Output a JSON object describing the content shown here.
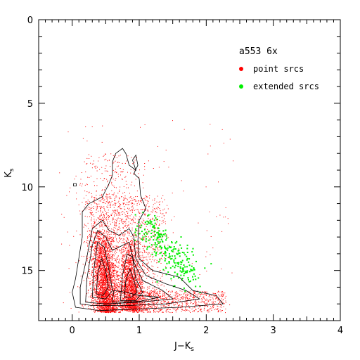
{
  "chart_data": {
    "type": "scatter",
    "title": "a553 6x",
    "xlabel": "J−K",
    "xlabel_subscript": "s",
    "ylabel": "K",
    "ylabel_subscript": "s",
    "xlim": [
      -0.5,
      4
    ],
    "ylim": [
      18,
      0
    ],
    "y_inverted": true,
    "grid": false,
    "legend_position": "top-right",
    "x_ticks": [
      0,
      1,
      2,
      3,
      4
    ],
    "y_ticks": [
      0,
      5,
      10,
      15
    ],
    "x_tick_labels": [
      "0",
      "1",
      "2",
      "3",
      "4"
    ],
    "y_tick_labels": [
      "0",
      "5",
      "10",
      "15"
    ],
    "series": [
      {
        "name": "point srcs",
        "color": "#ff0000",
        "marker": "dot",
        "values_cluster_description": "dense red cloud of point sources; two main tongues near J−K=0.35–0.6 and 0.8–0.95, spanning Ks≈11–17.5",
        "sample": [
          {
            "x": 0.4,
            "y": 13.0
          },
          {
            "x": 0.45,
            "y": 14.0
          },
          {
            "x": 0.5,
            "y": 15.0
          },
          {
            "x": 0.55,
            "y": 16.0
          },
          {
            "x": 0.6,
            "y": 16.5
          },
          {
            "x": 0.85,
            "y": 14.0
          },
          {
            "x": 0.9,
            "y": 15.5
          },
          {
            "x": 0.95,
            "y": 16.5
          },
          {
            "x": 1.2,
            "y": 16.8
          },
          {
            "x": 1.5,
            "y": 16.9
          },
          {
            "x": 1.8,
            "y": 16.9
          },
          {
            "x": 0.3,
            "y": 17.0
          },
          {
            "x": 0.8,
            "y": 10.0
          },
          {
            "x": 0.7,
            "y": 11.0
          },
          {
            "x": 0.6,
            "y": 8.5
          }
        ]
      },
      {
        "name": "extended srcs",
        "color": "#00ee00",
        "marker": "dot",
        "values_cluster_description": "green extended sources at J−K≈1.0–1.8, Ks≈11.5–16",
        "sample": [
          {
            "x": 1.1,
            "y": 12.5
          },
          {
            "x": 1.2,
            "y": 13.0
          },
          {
            "x": 1.3,
            "y": 13.8
          },
          {
            "x": 1.4,
            "y": 14.5
          },
          {
            "x": 1.5,
            "y": 15.0
          },
          {
            "x": 1.6,
            "y": 15.2
          },
          {
            "x": 1.7,
            "y": 15.4
          },
          {
            "x": 1.2,
            "y": 14.2
          },
          {
            "x": 1.0,
            "y": 15.5
          },
          {
            "x": 1.8,
            "y": 15.0
          }
        ]
      }
    ],
    "contour_color": "#000000"
  },
  "colors": {
    "point": "#ff0000",
    "extended": "#00ee00",
    "axes": "#000000"
  }
}
